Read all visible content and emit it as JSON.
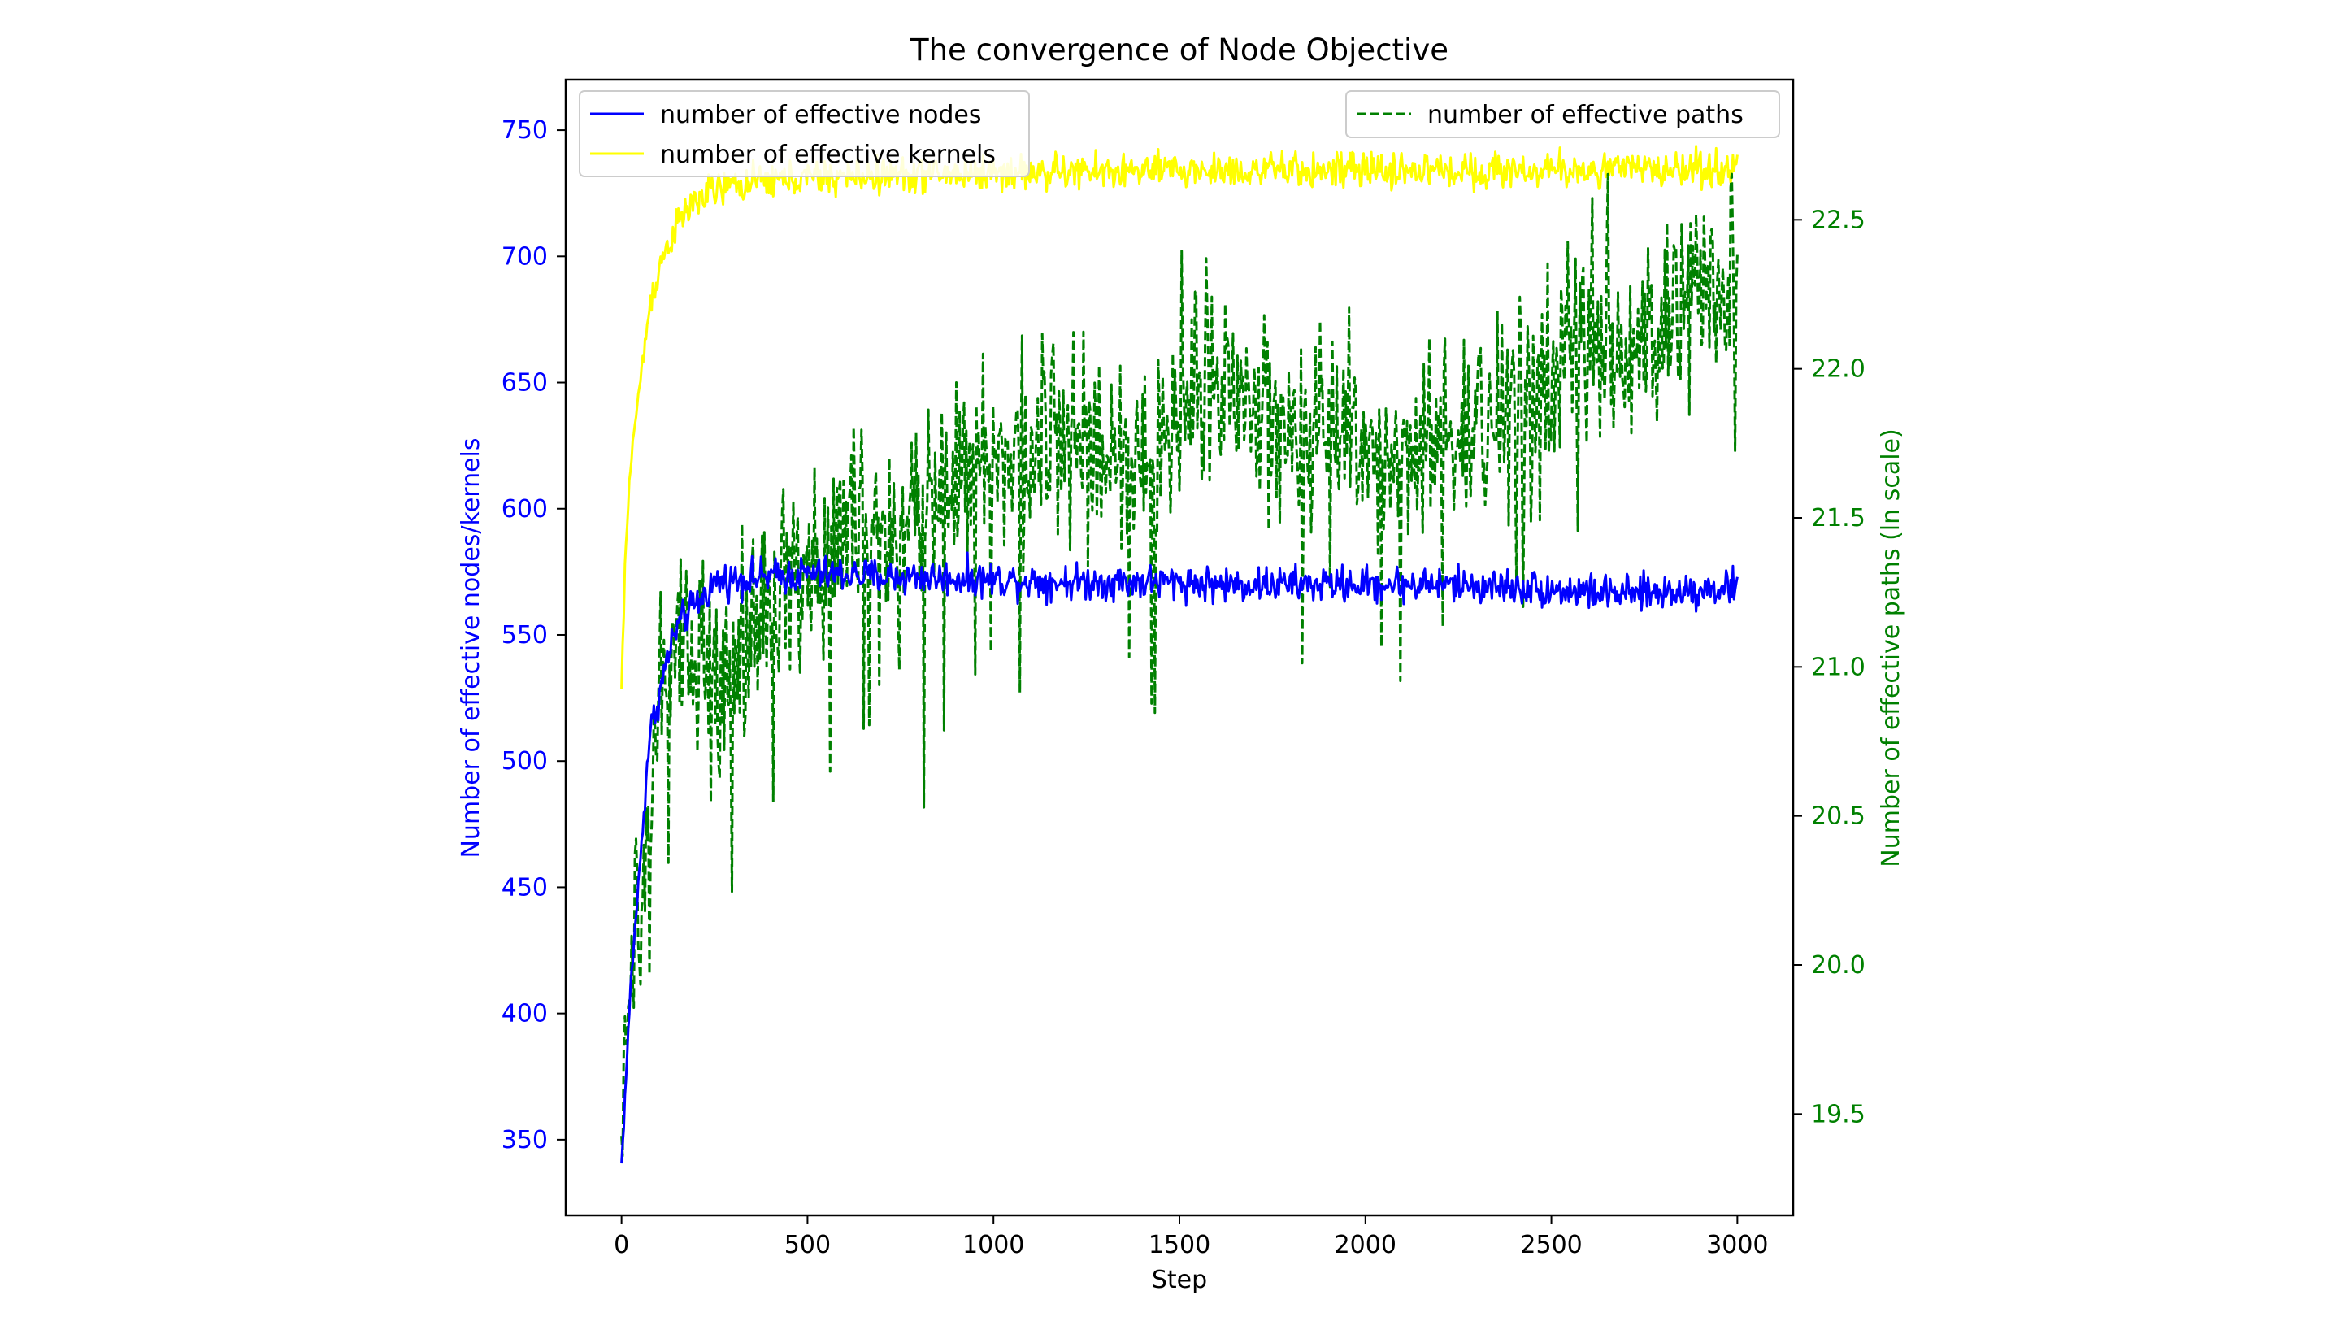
{
  "chart_data": {
    "type": "line",
    "title": "The convergence of Node Objective",
    "xlabel": "Step",
    "ylabel_left": "Number of effective nodes/kernels",
    "ylabel_right": "Number of effective paths (ln scale)",
    "xlim": [
      -150,
      3150
    ],
    "ylim_left": [
      320,
      770
    ],
    "ylim_right": [
      19.16,
      22.97
    ],
    "x_ticks": [
      0,
      500,
      1000,
      1500,
      2000,
      2500,
      3000
    ],
    "y_left_ticks": [
      350,
      400,
      450,
      500,
      550,
      600,
      650,
      700,
      750
    ],
    "y_right_ticks": [
      19.5,
      20.0,
      20.5,
      21.0,
      21.5,
      22.0,
      22.5
    ],
    "grid": false,
    "legend_left_position": "upper-left",
    "legend_right_position": "upper-right",
    "series": [
      {
        "name": "number of effective nodes",
        "axis": "left",
        "color": "#0000ff",
        "style": "solid",
        "x": [
          0,
          25,
          50,
          75,
          100,
          125,
          150,
          175,
          200,
          225,
          250,
          300,
          400,
          500,
          600,
          700,
          800,
          1000,
          1200,
          1400,
          1500,
          1600,
          1800,
          2000,
          2200,
          2400,
          2500,
          2600,
          2700,
          2800,
          2900,
          3000
        ],
        "values": [
          340,
          412,
          460,
          510,
          525,
          542,
          553,
          558,
          562,
          566,
          571,
          572,
          573,
          574,
          574,
          573,
          573,
          572,
          571,
          571,
          571,
          570,
          570,
          570,
          570,
          569,
          568,
          567,
          566,
          567,
          568,
          569
        ],
        "noise": 3.5
      },
      {
        "name": "number of effective kernels",
        "axis": "left",
        "color": "#ffff00",
        "style": "solid",
        "x": [
          0,
          10,
          25,
          50,
          75,
          100,
          125,
          150,
          175,
          200,
          250,
          300,
          400,
          500,
          700,
          1000,
          1500,
          2000,
          2500,
          3000
        ],
        "values": [
          528,
          580,
          620,
          650,
          680,
          695,
          705,
          712,
          718,
          722,
          726,
          728,
          730,
          731,
          732,
          733,
          734,
          734,
          734,
          735
        ],
        "noise": 3.5
      },
      {
        "name": "number of effective paths",
        "axis": "right",
        "color": "#008000",
        "style": "dashed",
        "x": [
          0,
          25,
          50,
          100,
          150,
          200,
          300,
          400,
          500,
          600,
          700,
          800,
          900,
          1000,
          1100,
          1200,
          1300,
          1400,
          1500,
          1600,
          1700,
          1800,
          1900,
          2000,
          2100,
          2200,
          2300,
          2400,
          2500,
          2600,
          2700,
          2800,
          2900,
          3000
        ],
        "values": [
          19.4,
          20.0,
          20.1,
          20.9,
          21.1,
          20.9,
          21.0,
          21.2,
          21.3,
          21.45,
          21.5,
          21.5,
          21.7,
          21.7,
          21.75,
          21.75,
          21.7,
          21.7,
          21.9,
          21.95,
          21.9,
          21.75,
          21.8,
          21.65,
          21.7,
          21.8,
          21.75,
          21.9,
          22.0,
          22.1,
          22.0,
          22.2,
          22.25,
          22.3
        ],
        "noise": 0.16
      }
    ]
  }
}
